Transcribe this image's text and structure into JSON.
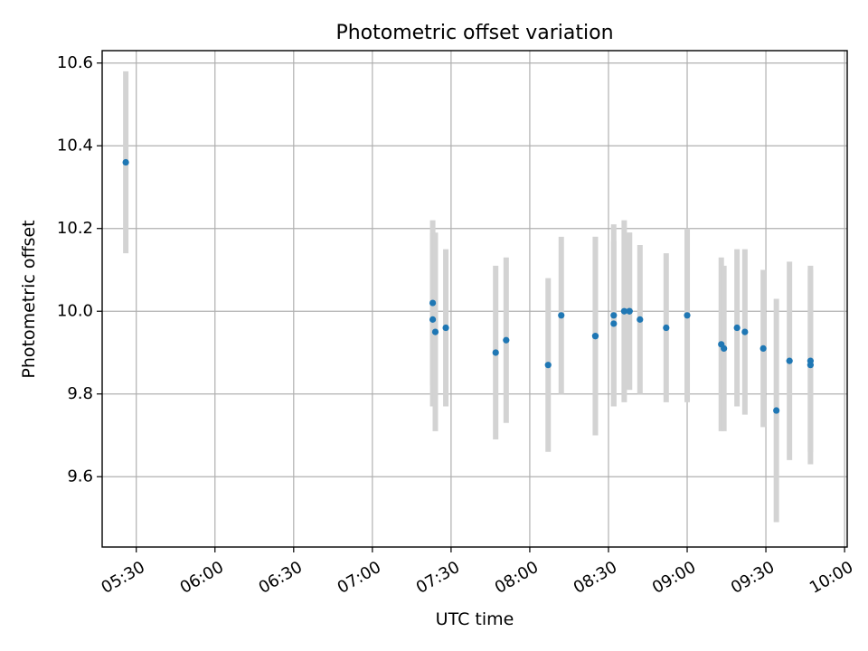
{
  "chart_data": {
    "type": "scatter",
    "title": "Photometric offset variation",
    "xlabel": "UTC time",
    "ylabel": "Photometric offset",
    "x_ticks": [
      "05:30",
      "06:00",
      "06:30",
      "07:00",
      "07:30",
      "08:00",
      "08:30",
      "09:00",
      "09:30",
      "10:00"
    ],
    "y_ticks": [
      "9.6",
      "9.8",
      "10.0",
      "10.2",
      "10.4",
      "10.6"
    ],
    "xlim": [
      "05:17",
      "10:01"
    ],
    "ylim": [
      9.43,
      10.63
    ],
    "grid": true,
    "colors": {
      "point": "#1f77b4",
      "errorbar": "#d3d3d3",
      "grid": "#b0b0b0"
    },
    "points": [
      {
        "x": "05:26",
        "y": 10.36,
        "err": 0.22
      },
      {
        "x": "07:23",
        "y": 10.02,
        "err": 0.2
      },
      {
        "x": "07:23",
        "y": 9.98,
        "err": 0.21
      },
      {
        "x": "07:24",
        "y": 9.95,
        "err": 0.24
      },
      {
        "x": "07:28",
        "y": 9.96,
        "err": 0.19
      },
      {
        "x": "07:47",
        "y": 9.9,
        "err": 0.21
      },
      {
        "x": "07:51",
        "y": 9.93,
        "err": 0.2
      },
      {
        "x": "08:07",
        "y": 9.87,
        "err": 0.21
      },
      {
        "x": "08:12",
        "y": 9.99,
        "err": 0.19
      },
      {
        "x": "08:25",
        "y": 9.94,
        "err": 0.24
      },
      {
        "x": "08:25",
        "y": 9.94,
        "err": 0.24
      },
      {
        "x": "08:32",
        "y": 9.99,
        "err": 0.22
      },
      {
        "x": "08:32",
        "y": 9.97,
        "err": 0.2
      },
      {
        "x": "08:36",
        "y": 10.0,
        "err": 0.22
      },
      {
        "x": "08:38",
        "y": 10.0,
        "err": 0.19
      },
      {
        "x": "08:38",
        "y": 10.0,
        "err": 0.19
      },
      {
        "x": "08:42",
        "y": 9.98,
        "err": 0.18
      },
      {
        "x": "08:52",
        "y": 9.96,
        "err": 0.18
      },
      {
        "x": "09:00",
        "y": 9.99,
        "err": 0.21
      },
      {
        "x": "09:13",
        "y": 9.92,
        "err": 0.21
      },
      {
        "x": "09:14",
        "y": 9.91,
        "err": 0.2
      },
      {
        "x": "09:19",
        "y": 9.96,
        "err": 0.19
      },
      {
        "x": "09:22",
        "y": 9.95,
        "err": 0.2
      },
      {
        "x": "09:29",
        "y": 9.91,
        "err": 0.19
      },
      {
        "x": "09:34",
        "y": 9.76,
        "err": 0.27
      },
      {
        "x": "09:39",
        "y": 9.88,
        "err": 0.24
      },
      {
        "x": "09:47",
        "y": 9.88,
        "err": 0.22
      },
      {
        "x": "09:47",
        "y": 9.87,
        "err": 0.24
      }
    ]
  }
}
